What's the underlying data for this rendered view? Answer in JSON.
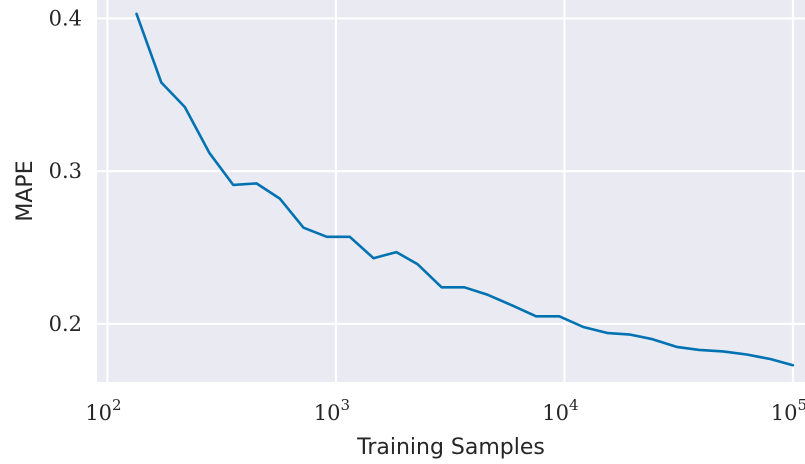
{
  "chart_data": {
    "type": "line",
    "title": "",
    "xlabel": "Training Samples",
    "ylabel": "MAPE",
    "xscale": "log",
    "xlim": [
      90,
      113000
    ],
    "ylim": [
      0.162,
      0.412
    ],
    "x_ticks": [
      {
        "value": 100,
        "base": "10",
        "exp": "2"
      },
      {
        "value": 1000,
        "base": "10",
        "exp": "3"
      },
      {
        "value": 10000,
        "base": "10",
        "exp": "4"
      },
      {
        "value": 100000,
        "base": "10",
        "exp": "5"
      }
    ],
    "y_ticks": [
      {
        "value": 0.2,
        "label": "0.2"
      },
      {
        "value": 0.3,
        "label": "0.3"
      },
      {
        "value": 0.4,
        "label": "0.4"
      }
    ],
    "grid": true,
    "style": {
      "background": "#eaeaf2",
      "grid_color": "#ffffff",
      "line_color": "#0072b2"
    },
    "series": [
      {
        "color": "#0072b2",
        "x": [
          134,
          172,
          218,
          279,
          355,
          449,
          568,
          721,
          912,
          1150,
          1460,
          1840,
          2280,
          2900,
          3650,
          4630,
          5930,
          7520,
          9500,
          12100,
          15500,
          19400,
          24300,
          31000,
          38900,
          49500,
          62800,
          80000,
          100000
        ],
        "y": [
          0.403,
          0.358,
          0.342,
          0.312,
          0.291,
          0.292,
          0.282,
          0.263,
          0.257,
          0.257,
          0.243,
          0.247,
          0.239,
          0.224,
          0.224,
          0.219,
          0.212,
          0.205,
          0.205,
          0.198,
          0.194,
          0.193,
          0.19,
          0.185,
          0.183,
          0.182,
          0.18,
          0.177,
          0.173
        ]
      }
    ]
  }
}
